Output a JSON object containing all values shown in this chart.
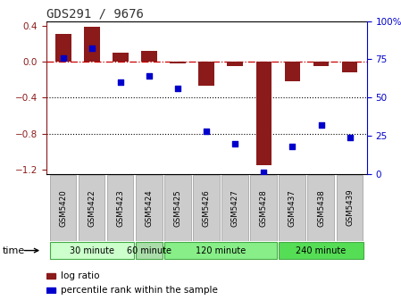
{
  "title": "GDS291 / 9676",
  "samples": [
    "GSM5420",
    "GSM5422",
    "GSM5423",
    "GSM5424",
    "GSM5425",
    "GSM5426",
    "GSM5427",
    "GSM5428",
    "GSM5437",
    "GSM5438",
    "GSM5439"
  ],
  "log_ratio": [
    0.31,
    0.39,
    0.1,
    0.12,
    -0.02,
    -0.27,
    -0.05,
    -1.15,
    -0.22,
    -0.05,
    -0.12
  ],
  "percentile": [
    76,
    82,
    60,
    64,
    56,
    28,
    20,
    1,
    18,
    32,
    24
  ],
  "bar_color": "#8B1A1A",
  "dot_color": "#0000CC",
  "ylim_left": [
    -1.25,
    0.45
  ],
  "ylim_right": [
    0,
    100
  ],
  "yticks_left": [
    -1.2,
    -0.8,
    -0.4,
    0.0,
    0.4
  ],
  "yticks_right": [
    0,
    25,
    50,
    75,
    100
  ],
  "groups": [
    {
      "label": "30 minute",
      "start": 0,
      "end": 2
    },
    {
      "label": "60 minute",
      "start": 3,
      "end": 3
    },
    {
      "label": "120 minute",
      "start": 4,
      "end": 7
    },
    {
      "label": "240 minute",
      "start": 8,
      "end": 10
    }
  ],
  "group_colors": [
    "#CCFFCC",
    "#AADDAA",
    "#88EE88",
    "#55DD55"
  ],
  "group_border_color": "#44AA44",
  "sample_box_color": "#CCCCCC",
  "sample_box_edge": "#999999",
  "time_label": "time",
  "legend_bar_label": "log ratio",
  "legend_dot_label": "percentile rank within the sample",
  "background_color": "#FFFFFF",
  "gridline_color": "#000000",
  "zero_line_color": "#CC0000",
  "bar_width": 0.55
}
